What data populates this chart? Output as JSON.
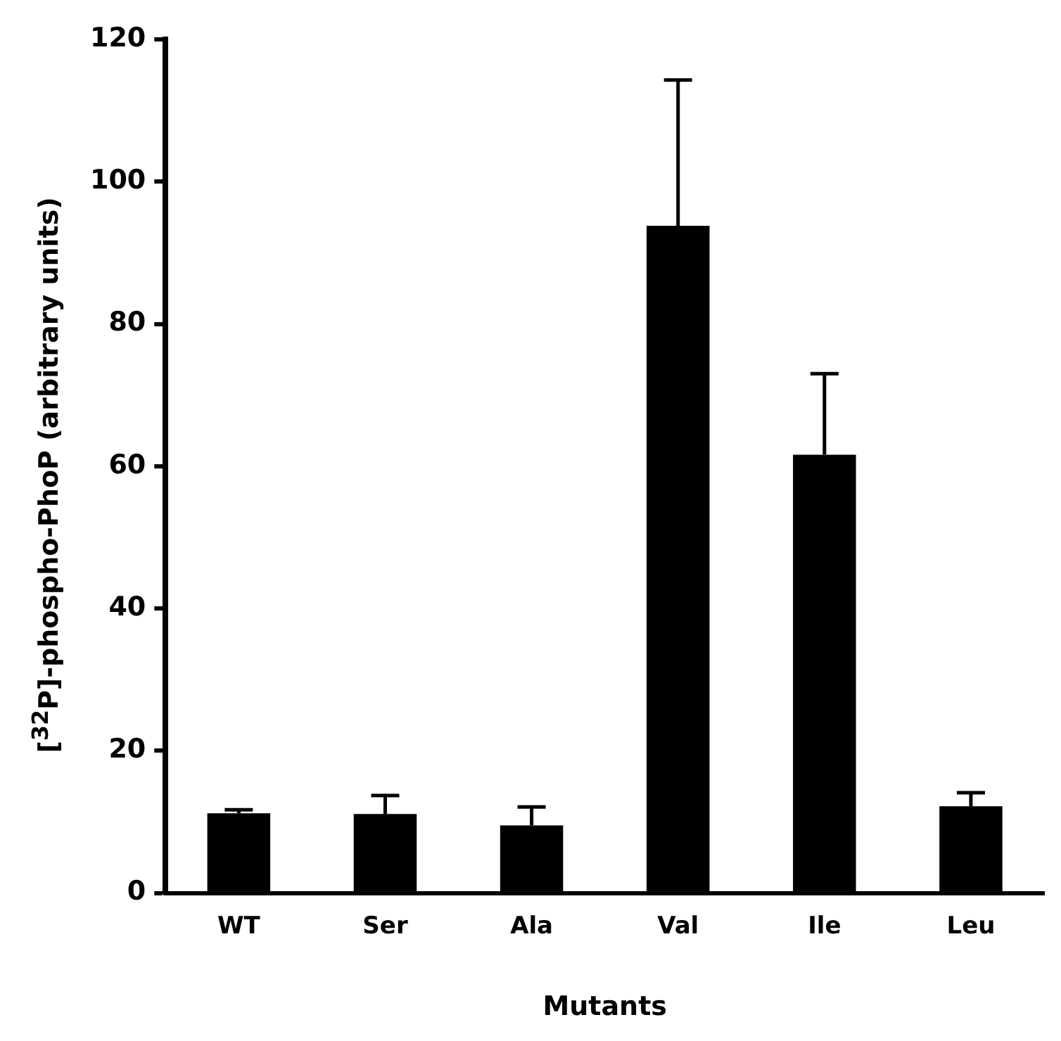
{
  "chart_data": {
    "type": "bar",
    "xlabel": "Mutants",
    "ylabel": "[$^{32}$P]-phospho-PhoP (arbitrary units)",
    "categories": [
      "WT",
      "Ser",
      "Ala",
      "Val",
      "Ile",
      "Leu"
    ],
    "values": [
      11.2,
      11.1,
      9.5,
      93.8,
      61.6,
      12.2
    ],
    "errors": [
      [
        11.2,
        11.7
      ],
      [
        11.1,
        13.7
      ],
      [
        9.5,
        12.1
      ],
      [
        93.8,
        114.3
      ],
      [
        61.6,
        73.0
      ],
      [
        12.2,
        14.1
      ]
    ],
    "color": "#000000",
    "ylim": [
      0,
      120
    ],
    "yticks": [
      0,
      20,
      40,
      60,
      80,
      100,
      120
    ],
    "grid": false,
    "legend": false
  }
}
